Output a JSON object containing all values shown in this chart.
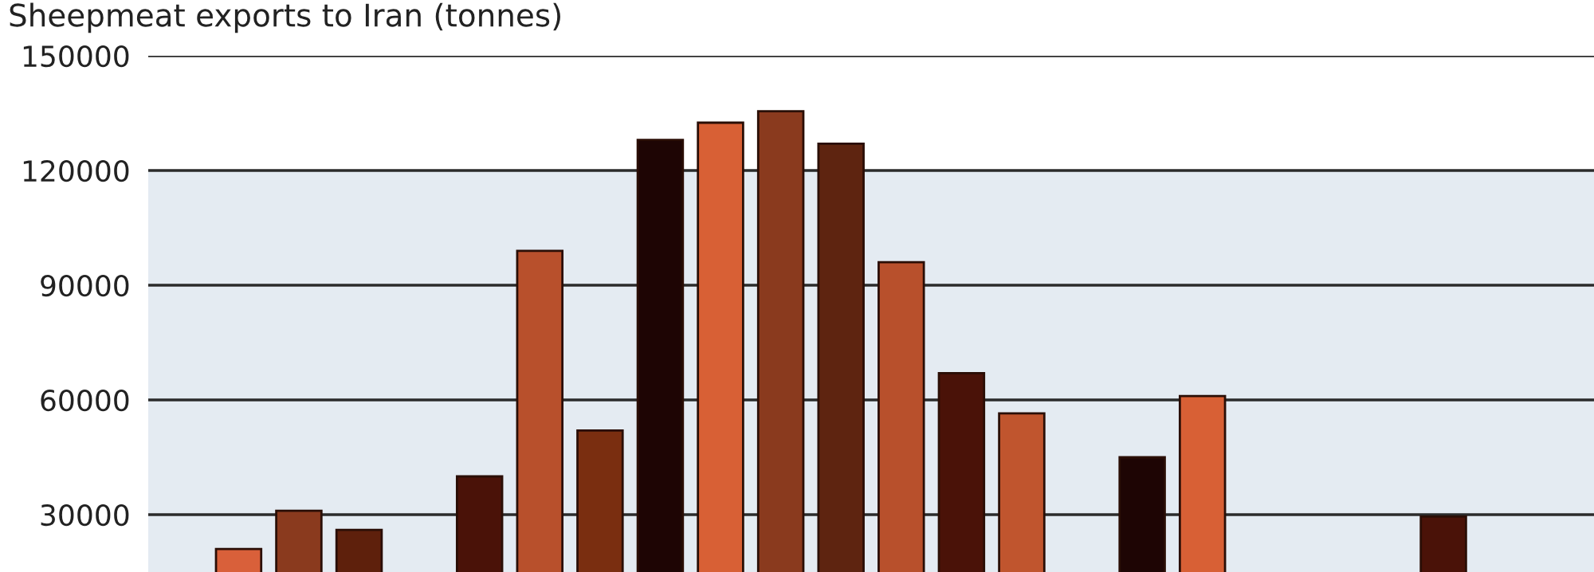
{
  "chart_data": {
    "type": "bar",
    "title": "Sheepmeat exports to Iran (tonnes)",
    "categories": [
      null,
      null,
      null,
      null,
      null,
      null,
      null,
      null,
      null,
      null,
      null,
      null,
      null,
      null,
      null,
      null,
      null,
      null,
      null,
      null,
      null,
      null,
      null,
      null
    ],
    "values": [
      null,
      21000,
      31000,
      26000,
      null,
      40000,
      99000,
      52000,
      128000,
      132500,
      135500,
      127000,
      96000,
      67000,
      56500,
      null,
      45000,
      61000,
      null,
      null,
      null,
      29500,
      null,
      null
    ],
    "colors": [
      null,
      "#d9603a",
      "#8a3a1e",
      "#5e200c",
      null,
      "#4a1208",
      "#b8502c",
      "#7a2e10",
      "#1e0504",
      "#d86035",
      "#8a3a1e",
      "#5e2410",
      "#b8502c",
      "#4a1208",
      "#c0552e",
      null,
      "#1e0504",
      "#d86035",
      null,
      null,
      null,
      "#4a1208",
      null,
      null
    ],
    "ylim": [
      0,
      150000
    ],
    "yticks": [
      30000,
      60000,
      90000,
      120000,
      150000
    ],
    "bands": [
      {
        "axis": "y",
        "from": 0,
        "to": 120000,
        "color": "#e4ebf2"
      }
    ],
    "grid": "y",
    "tick_labels": "y"
  }
}
